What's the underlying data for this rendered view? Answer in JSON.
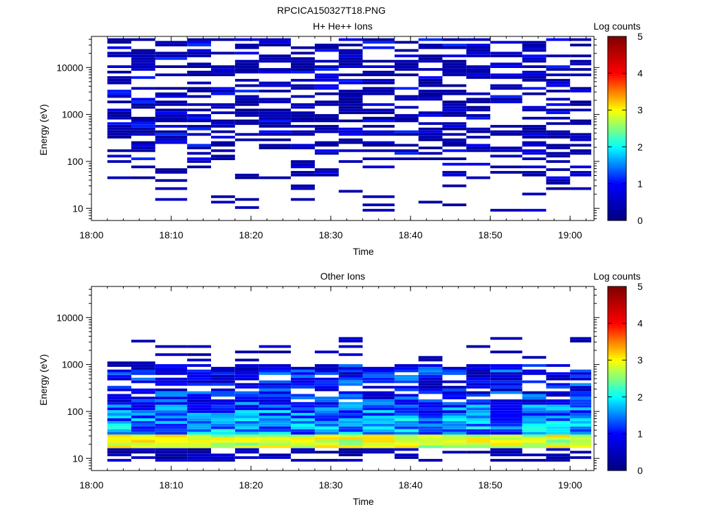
{
  "figure_title": "RPCICA150327T18.PNG",
  "colorbar_label": "Log counts",
  "colorbar_ticks": [
    "0",
    "1",
    "2",
    "3",
    "4",
    "5"
  ],
  "colorscale": [
    "#00007f",
    "#0000ff",
    "#00ffff",
    "#ffff00",
    "#ff0000",
    "#7f0000"
  ],
  "chart_data": [
    {
      "type": "heatmap",
      "title": "H+ He++ Ions",
      "xlabel": "Time",
      "ylabel": "Energy (eV)",
      "x_ticks": [
        "18:00",
        "18:10",
        "18:20",
        "18:30",
        "18:40",
        "18:50",
        "19:00"
      ],
      "y_ticks": [
        "10",
        "100",
        "1000",
        "10000"
      ],
      "y_scale": "log",
      "ylim": [
        5.5,
        46000
      ],
      "xlim": [
        "18:00",
        "19:03"
      ],
      "zlim": [
        0,
        5
      ],
      "columns_start": [
        "18:02",
        "18:05",
        "18:08",
        "18:12",
        "18:15",
        "18:18",
        "18:21",
        "18:25",
        "18:28",
        "18:31",
        "18:34",
        "18:38",
        "18:41",
        "18:44",
        "18:47",
        "18:50",
        "18:54",
        "18:57",
        "19:00"
      ],
      "column_width_min": 3.2,
      "energy_bins": 64,
      "sparse_above_eV": 150,
      "description_levels": "mostly 0-0.5 log counts (dark blue) with sparse blue streaks",
      "seed": 17,
      "profile": "h_ions"
    },
    {
      "type": "heatmap",
      "title": "Other Ions",
      "xlabel": "Time",
      "ylabel": "Energy (eV)",
      "x_ticks": [
        "18:00",
        "18:10",
        "18:20",
        "18:30",
        "18:40",
        "18:50",
        "19:00"
      ],
      "y_ticks": [
        "10",
        "100",
        "1000",
        "10000"
      ],
      "y_scale": "log",
      "ylim": [
        5.5,
        46000
      ],
      "xlim": [
        "18:00",
        "19:03"
      ],
      "zlim": [
        0,
        5
      ],
      "columns_start": [
        "18:02",
        "18:05",
        "18:08",
        "18:12",
        "18:15",
        "18:18",
        "18:21",
        "18:25",
        "18:28",
        "18:31",
        "18:34",
        "18:38",
        "18:41",
        "18:44",
        "18:47",
        "18:50",
        "18:54",
        "18:57",
        "19:00"
      ],
      "column_width_min": 3.2,
      "energy_bins": 64,
      "peak_band_eV": [
        18,
        32
      ],
      "peak_level": 2.8,
      "seed": 41,
      "profile": "other_ions"
    }
  ]
}
